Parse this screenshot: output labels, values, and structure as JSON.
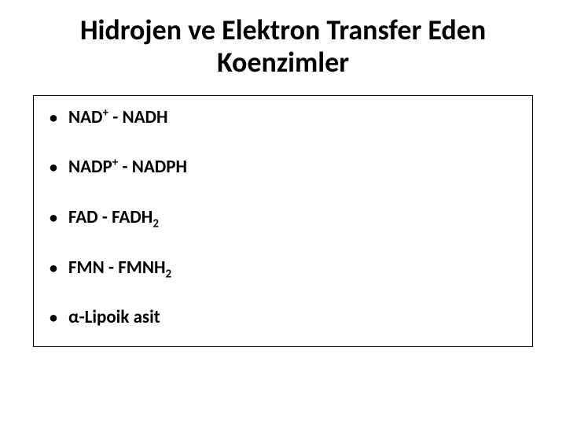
{
  "title": {
    "line1": "Hidrojen ve Elektron Transfer Eden",
    "line2": "Koenzimler",
    "fontsize": 36,
    "color": "#000000"
  },
  "bullet_char": "•",
  "items": [
    {
      "segments": [
        {
          "text": "NAD",
          "type": "normal"
        },
        {
          "text": "+",
          "type": "sup"
        },
        {
          "text": " - NADH",
          "type": "normal"
        }
      ]
    },
    {
      "segments": [
        {
          "text": "NADP",
          "type": "normal"
        },
        {
          "text": "+",
          "type": "sup"
        },
        {
          "text": " - NADPH",
          "type": "normal"
        }
      ]
    },
    {
      "segments": [
        {
          "text": "FAD - FADH",
          "type": "normal"
        },
        {
          "text": "2",
          "type": "sub"
        }
      ]
    },
    {
      "segments": [
        {
          "text": "FMN - FMNH",
          "type": "normal"
        },
        {
          "text": "2",
          "type": "sub"
        }
      ]
    },
    {
      "segments": [
        {
          "text": "α",
          "type": "alpha"
        },
        {
          "text": "-Lipoik asit",
          "type": "normal"
        }
      ]
    }
  ],
  "styles": {
    "item_fontsize": 23,
    "item_color": "#000000",
    "background_color": "#ffffff",
    "border_color": "#000000"
  }
}
